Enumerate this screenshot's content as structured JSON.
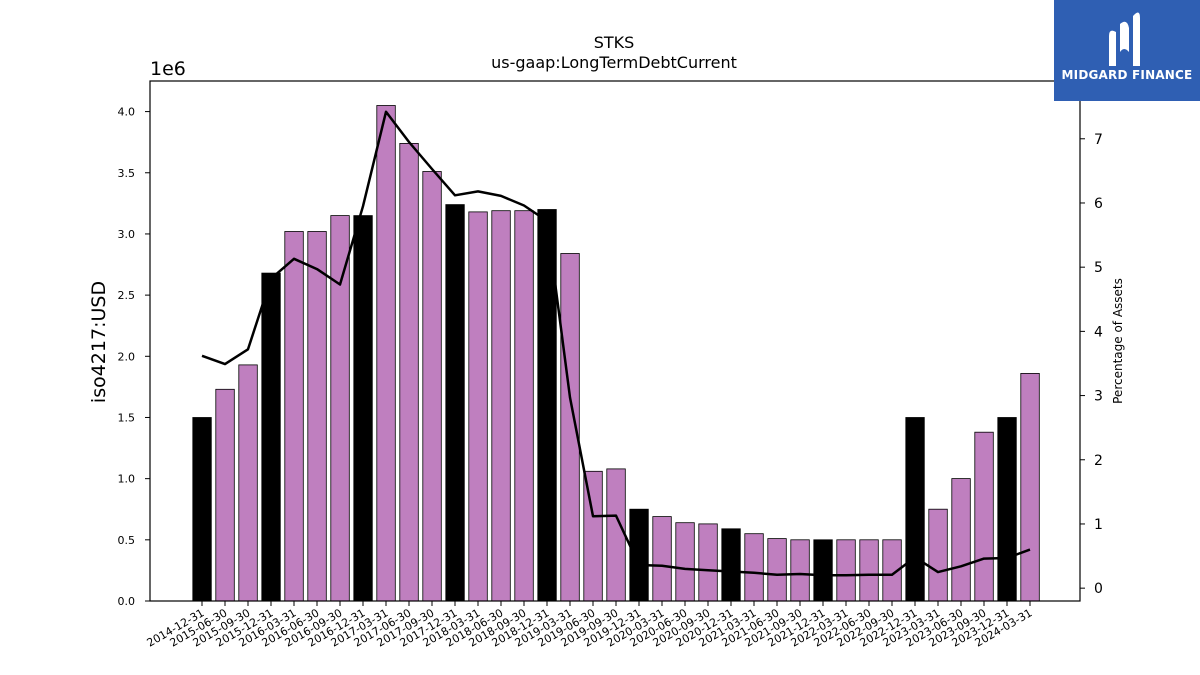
{
  "chart_data": {
    "type": "bar",
    "title": "STKS",
    "subtitle": "us-gaap:LongTermDebtCurrent",
    "ylabel": "iso4217:USD",
    "y2label": "Percentage of Assets",
    "y_offset_label": "1e6",
    "ylim": [
      0,
      4250000
    ],
    "y2lim": [
      -0.2,
      7.9
    ],
    "yticks": [
      "0.0",
      "0.5",
      "1.0",
      "1.5",
      "2.0",
      "2.5",
      "3.0",
      "3.5",
      "4.0"
    ],
    "y2ticks": [
      "0",
      "1",
      "2",
      "3",
      "4",
      "5",
      "6",
      "7"
    ],
    "categories": [
      "2014-12-31",
      "2015-06-30",
      "2015-09-30",
      "2015-12-31",
      "2016-03-31",
      "2016-06-30",
      "2016-09-30",
      "2016-12-31",
      "2017-03-31",
      "2017-06-30",
      "2017-09-30",
      "2017-12-31",
      "2018-03-31",
      "2018-06-30",
      "2018-09-30",
      "2018-12-31",
      "2019-03-31",
      "2019-06-30",
      "2019-09-30",
      "2019-12-31",
      "2020-03-31",
      "2020-06-30",
      "2020-09-30",
      "2020-12-31",
      "2021-03-31",
      "2021-06-30",
      "2021-09-30",
      "2021-12-31",
      "2022-03-31",
      "2022-06-30",
      "2022-09-30",
      "2022-12-31",
      "2023-03-31",
      "2023-06-30",
      "2023-09-30",
      "2023-12-31",
      "2024-03-31"
    ],
    "series": [
      {
        "values": [
          1500000,
          1730000,
          1930000,
          2680000,
          3020000,
          3020000,
          3150000,
          3150000,
          4050000,
          3740000,
          3510000,
          3240000,
          3180000,
          3190000,
          3190000,
          3200000,
          2840000,
          1060000,
          1080000,
          750000,
          690000,
          640000,
          630000,
          590000,
          550000,
          510000,
          500000,
          500000,
          500000,
          500000,
          500000,
          1500000,
          750000,
          1000000,
          1380000,
          1500000,
          1860000
        ],
        "annual": [
          true,
          false,
          false,
          true,
          false,
          false,
          false,
          true,
          false,
          false,
          false,
          true,
          false,
          false,
          false,
          true,
          false,
          false,
          false,
          true,
          false,
          false,
          false,
          true,
          false,
          false,
          false,
          true,
          false,
          false,
          false,
          true,
          false,
          false,
          false,
          true,
          false
        ]
      },
      {
        "axis": "right",
        "values": [
          3.62,
          3.49,
          3.72,
          4.82,
          5.13,
          4.97,
          4.73,
          5.95,
          7.42,
          6.95,
          6.53,
          6.12,
          6.18,
          6.11,
          5.96,
          5.72,
          2.97,
          1.12,
          1.13,
          0.36,
          0.35,
          0.3,
          0.28,
          0.26,
          0.24,
          0.21,
          0.22,
          0.2,
          0.2,
          0.21,
          0.21,
          0.48,
          0.25,
          0.34,
          0.46,
          0.47,
          0.6
        ]
      }
    ],
    "colors": {
      "bar_default": "#bf7fbf",
      "bar_annual": "#000000",
      "line": "#000000",
      "bar_edge": "#000000"
    },
    "grid": false
  },
  "logo": {
    "text": "MIDGARD FINANCE",
    "icon": "midgard-logo-icon",
    "background": "#2f5fb3"
  }
}
